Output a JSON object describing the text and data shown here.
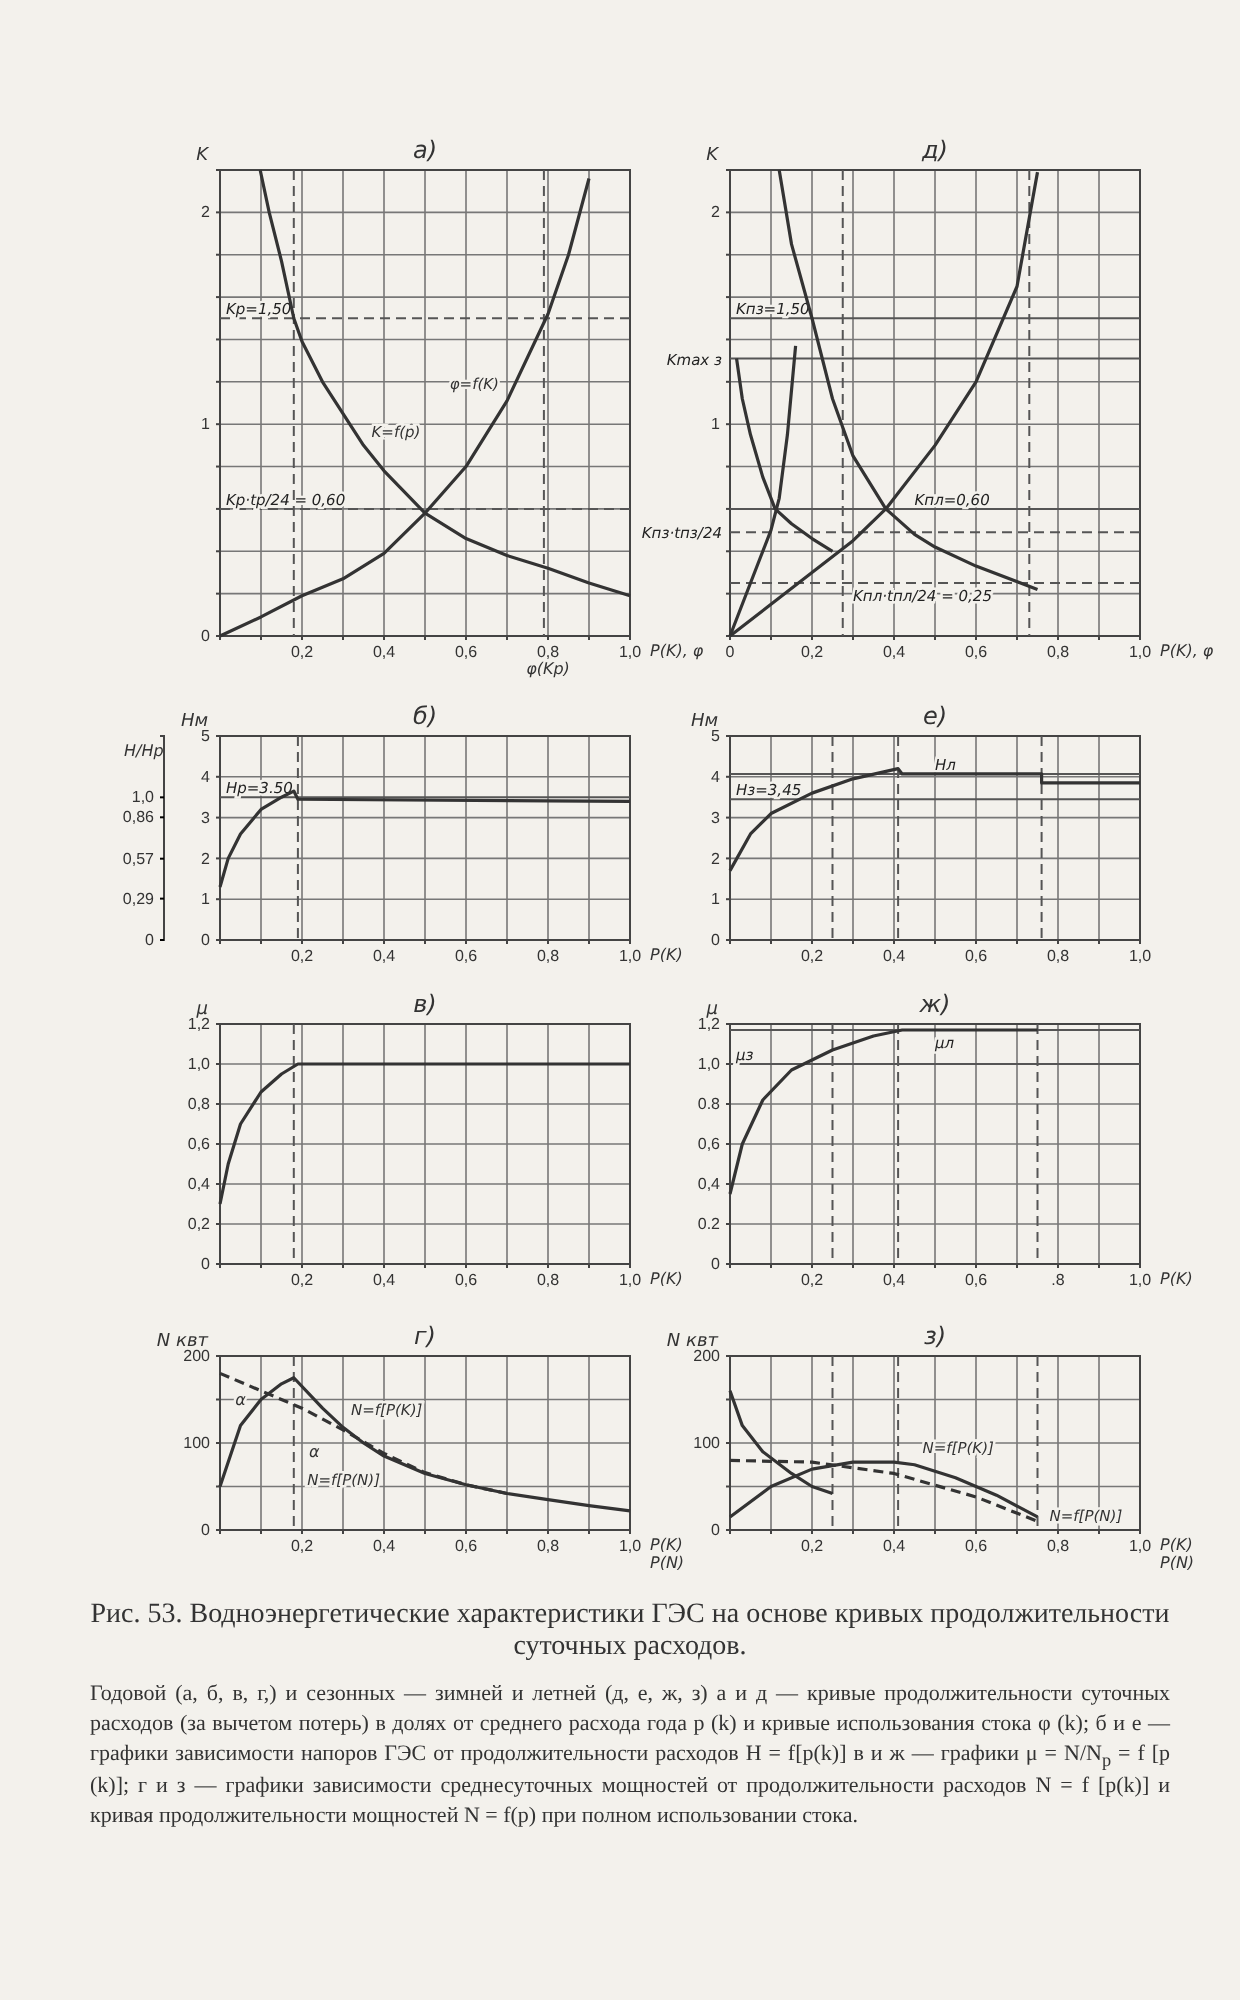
{
  "chart_data": [
    {
      "type": "line",
      "title": "а)",
      "ylabel": "K",
      "xlabel": "P(K), φ",
      "xlim": [
        0,
        1
      ],
      "ylim": [
        0,
        2.2
      ],
      "grid": true,
      "xticks": [
        {
          "value": 0,
          "label": null
        },
        {
          "value": 0.1,
          "label": null
        },
        {
          "value": 0.2,
          "label": "0,2"
        },
        {
          "value": 0.3,
          "label": null
        },
        {
          "value": 0.4,
          "label": "0,4"
        },
        {
          "value": 0.5,
          "label": null
        },
        {
          "value": 0.6,
          "label": "0,6"
        },
        {
          "value": 0.7,
          "label": null
        },
        {
          "value": 0.8,
          "label": "0,8"
        },
        {
          "value": 0.9,
          "label": null
        },
        {
          "value": 1,
          "label": "1,0"
        }
      ],
      "yticks": [
        0,
        {
          "value": 0.2,
          "label": null
        },
        {
          "value": 0.4,
          "label": null
        },
        {
          "value": 0.6,
          "label": null
        },
        {
          "value": 0.8,
          "label": null
        },
        1,
        {
          "value": 1.2,
          "label": null
        },
        {
          "value": 1.4,
          "label": null
        },
        {
          "value": 1.6,
          "label": null
        },
        {
          "value": 1.8,
          "label": null
        },
        2
      ],
      "series": [
        {
          "name": "K=f(p)",
          "color": "#333333",
          "x": [
            0.098,
            0.12,
            0.15,
            0.18,
            0.2,
            0.25,
            0.3,
            0.35,
            0.4,
            0.5,
            0.6,
            0.7,
            0.8,
            0.9,
            1.0
          ],
          "values": [
            2.2,
            2.0,
            1.77,
            1.5,
            1.39,
            1.2,
            1.05,
            0.9,
            0.78,
            0.58,
            0.46,
            0.38,
            0.32,
            0.25,
            0.19
          ]
        },
        {
          "name": "φ=f(K)",
          "color": "#333333",
          "x": [
            0,
            0.1,
            0.2,
            0.3,
            0.4,
            0.5,
            0.6,
            0.7,
            0.8,
            0.85,
            0.9
          ],
          "values": [
            0,
            0.09,
            0.19,
            0.27,
            0.39,
            0.58,
            0.8,
            1.11,
            1.52,
            1.8,
            2.16
          ]
        }
      ],
      "ref_lines": [
        {
          "axis": "y",
          "value": 1.5,
          "label": "Kр=1,50",
          "line_style": "dashed",
          "color": "#555555"
        },
        {
          "axis": "y",
          "value": 0.6,
          "label": "Kр·tр/24 = 0,60",
          "line_style": "dashed",
          "color": "#555555"
        },
        {
          "axis": "x",
          "value": 0.18,
          "line_style": "dashed",
          "color": "#555555"
        },
        {
          "axis": "x",
          "value": 0.79,
          "line_style": "dashed",
          "color": "#555555"
        }
      ],
      "annotations": [
        "φ(Kр)"
      ]
    },
    {
      "type": "line",
      "title": "д)",
      "ylabel": "K",
      "xlabel": "P(K), φ",
      "xlim": [
        0,
        1
      ],
      "ylim": [
        0,
        2.2
      ],
      "grid": true,
      "xticks": [
        {
          "value": 0,
          "label": "0"
        },
        {
          "value": 0.1,
          "label": null
        },
        {
          "value": 0.2,
          "label": "0,2"
        },
        {
          "value": 0.3,
          "label": null
        },
        {
          "value": 0.4,
          "label": "0,4"
        },
        {
          "value": 0.5,
          "label": null
        },
        {
          "value": 0.6,
          "label": "0,6"
        },
        {
          "value": 0.7,
          "label": null
        },
        {
          "value": 0.8,
          "label": "0,8"
        },
        {
          "value": 0.9,
          "label": null
        },
        {
          "value": 1,
          "label": "1,0"
        }
      ],
      "tick_labels": "xy",
      "yticks": [
        {
          "value": 0,
          "label": null
        },
        {
          "value": 0.2,
          "label": null
        },
        {
          "value": 0.4,
          "label": null
        },
        {
          "value": 0.6,
          "label": null
        },
        {
          "value": 0.8,
          "label": null
        },
        1,
        {
          "value": 1.2,
          "label": null
        },
        {
          "value": 1.4,
          "label": null
        },
        {
          "value": 1.6,
          "label": null
        },
        {
          "value": 1.8,
          "label": null
        },
        2
      ],
      "series": [
        {
          "color": "#333333",
          "x": [
            0.12,
            0.15,
            0.2,
            0.25,
            0.3,
            0.38,
            0.45,
            0.5,
            0.6,
            0.75
          ],
          "values": [
            2.2,
            1.85,
            1.5,
            1.12,
            0.85,
            0.6,
            0.48,
            0.42,
            0.33,
            0.22
          ]
        },
        {
          "color": "#333333",
          "x": [
            0.016,
            0.03,
            0.05,
            0.08,
            0.11,
            0.15,
            0.2,
            0.25
          ],
          "values": [
            1.31,
            1.12,
            0.95,
            0.75,
            0.6,
            0.53,
            0.46,
            0.4
          ]
        },
        {
          "color": "#333333",
          "x": [
            0,
            0.05,
            0.1,
            0.12,
            0.14,
            0.16
          ],
          "values": [
            0,
            0.25,
            0.5,
            0.65,
            0.95,
            1.37
          ]
        },
        {
          "color": "#333333",
          "x": [
            0,
            0.1,
            0.2,
            0.3,
            0.38,
            0.5,
            0.6,
            0.7,
            0.75
          ],
          "values": [
            0,
            0.15,
            0.3,
            0.45,
            0.6,
            0.9,
            1.2,
            1.65,
            2.19
          ]
        }
      ],
      "ref_lines": [
        {
          "axis": "y",
          "value": 1.5,
          "label": "Kпз=1,50",
          "line_style": "solid",
          "color": "#555555"
        },
        {
          "axis": "y",
          "value": 1.31,
          "label": "Kmax з",
          "line_style": "solid",
          "color": "#555555"
        },
        {
          "axis": "y",
          "value": 0.49,
          "label": "Kпз·tпз/24",
          "line_style": "dashed",
          "color": "#555555"
        },
        {
          "axis": "y",
          "value": 0.6,
          "label": "Kпл=0,60",
          "line_style": "solid",
          "color": "#555555"
        },
        {
          "axis": "y",
          "value": 0.25,
          "label": "Kпл·tпл/24 = 0,25",
          "line_style": "dashed",
          "color": "#555555"
        },
        {
          "axis": "x",
          "value": 0.275,
          "line_style": "dashed",
          "color": "#555555"
        },
        {
          "axis": "x",
          "value": 0.73,
          "line_style": "dashed",
          "color": "#555555"
        }
      ]
    },
    {
      "type": "line",
      "title": "б)",
      "ylabel": "Hм",
      "y2label": "H/Hр",
      "xlabel": "P(K)",
      "xlim": [
        0,
        1
      ],
      "ylim": [
        0,
        5
      ],
      "y2lim": [
        0,
        1.43
      ],
      "grid": true,
      "xticks": [
        {
          "value": 0,
          "label": null
        },
        {
          "value": 0.1,
          "label": null
        },
        {
          "value": 0.2,
          "label": "0,2"
        },
        {
          "value": 0.3,
          "label": null
        },
        {
          "value": 0.4,
          "label": "0,4"
        },
        {
          "value": 0.5,
          "label": null
        },
        {
          "value": 0.6,
          "label": "0,6"
        },
        {
          "value": 0.7,
          "label": null
        },
        {
          "value": 0.8,
          "label": "0,8"
        },
        {
          "value": 0.9,
          "label": null
        },
        {
          "value": 1,
          "label": "1,0"
        }
      ],
      "yticks": [
        0,
        1,
        2,
        3,
        4,
        5
      ],
      "y2ticks": [
        0,
        {
          "value": 0.29,
          "label": "0,29"
        },
        {
          "value": 0.57,
          "label": "0,57"
        },
        {
          "value": 0.86,
          "label": "0,86"
        },
        {
          "value": 1,
          "label": "1,0"
        }
      ],
      "series": [
        {
          "color": "#333333",
          "x": [
            0,
            0.02,
            0.05,
            0.1,
            0.15,
            0.18,
            0.19,
            1.0
          ],
          "values": [
            1.3,
            2.0,
            2.6,
            3.2,
            3.5,
            3.65,
            3.45,
            3.4
          ]
        }
      ],
      "ref_lines": [
        {
          "axis": "y",
          "value": 3.5,
          "label": "Hр=3.50",
          "line_style": "solid",
          "color": "#555555"
        },
        {
          "axis": "x",
          "value": 0.19,
          "line_style": "dashed",
          "color": "#555555"
        }
      ]
    },
    {
      "type": "line",
      "title": "е)",
      "ylabel": "Hм",
      "xlim": [
        0,
        1
      ],
      "ylim": [
        0,
        5
      ],
      "grid": true,
      "xticks": [
        {
          "value": 0,
          "label": null
        },
        {
          "value": 0.1,
          "label": null
        },
        {
          "value": 0.2,
          "label": "0,2"
        },
        {
          "value": 0.3,
          "label": null
        },
        {
          "value": 0.4,
          "label": "0,4"
        },
        {
          "value": 0.5,
          "label": null
        },
        {
          "value": 0.6,
          "label": "0,6"
        },
        {
          "value": 0.7,
          "label": null
        },
        {
          "value": 0.8,
          "label": "0,8"
        },
        {
          "value": 0.9,
          "label": null
        },
        {
          "value": 1,
          "label": "1,0"
        }
      ],
      "yticks": [
        0,
        1,
        2,
        3,
        4,
        5
      ],
      "series": [
        {
          "color": "#333333",
          "x": [
            0,
            0.05,
            0.1,
            0.2,
            0.3,
            0.41,
            0.42,
            0.76,
            0.76,
            1.0
          ],
          "values": [
            1.7,
            2.6,
            3.1,
            3.6,
            3.95,
            4.2,
            4.07,
            4.07,
            3.85,
            3.85
          ]
        }
      ],
      "ref_lines": [
        {
          "axis": "y",
          "value": 3.45,
          "label": "Hз=3,45",
          "line_style": "solid",
          "color": "#555555"
        },
        {
          "axis": "y",
          "value": 4.07,
          "label": "Hл",
          "line_style": "solid",
          "color": "#555555"
        },
        {
          "axis": "x",
          "value": 0.25,
          "line_style": "dashed",
          "color": "#555555"
        },
        {
          "axis": "x",
          "value": 0.41,
          "line_style": "dashed",
          "color": "#555555"
        },
        {
          "axis": "x",
          "value": 0.76,
          "line_style": "dashed",
          "color": "#555555"
        }
      ]
    },
    {
      "type": "line",
      "title": "в)",
      "ylabel": "μ",
      "xlabel": "P(K)",
      "xlim": [
        0,
        1
      ],
      "ylim": [
        0,
        1.2
      ],
      "grid": true,
      "xticks": [
        {
          "value": 0,
          "label": null
        },
        {
          "value": 0.1,
          "label": null
        },
        {
          "value": 0.2,
          "label": "0,2"
        },
        {
          "value": 0.3,
          "label": null
        },
        {
          "value": 0.4,
          "label": "0,4"
        },
        {
          "value": 0.5,
          "label": null
        },
        {
          "value": 0.6,
          "label": "0,6"
        },
        {
          "value": 0.7,
          "label": null
        },
        {
          "value": 0.8,
          "label": "0,8"
        },
        {
          "value": 0.9,
          "label": null
        },
        {
          "value": 1,
          "label": "1,0"
        }
      ],
      "yticks": [
        0,
        {
          "value": 0.2,
          "label": "0,2"
        },
        {
          "value": 0.4,
          "label": "0,4"
        },
        {
          "value": 0.6,
          "label": "0,6"
        },
        {
          "value": 0.8,
          "label": "0,8"
        },
        {
          "value": 1,
          "label": "1,0"
        },
        {
          "value": 1.2,
          "label": "1,2"
        }
      ],
      "series": [
        {
          "color": "#333333",
          "x": [
            0,
            0.02,
            0.05,
            0.1,
            0.15,
            0.19,
            1.0
          ],
          "values": [
            0.3,
            0.5,
            0.7,
            0.86,
            0.95,
            1.0,
            1.0
          ]
        }
      ],
      "ref_lines": [
        {
          "axis": "x",
          "value": 0.18,
          "line_style": "dashed",
          "color": "#555555"
        }
      ]
    },
    {
      "type": "line",
      "title": "ж)",
      "ylabel": "μ",
      "xlabel": "P(K)",
      "xlim": [
        0,
        1
      ],
      "ylim": [
        0,
        1.2
      ],
      "grid": true,
      "xticks": [
        {
          "value": 0,
          "label": null
        },
        {
          "value": 0.1,
          "label": null
        },
        {
          "value": 0.2,
          "label": "0,2"
        },
        {
          "value": 0.3,
          "label": null
        },
        {
          "value": 0.4,
          "label": "0,4"
        },
        {
          "value": 0.5,
          "label": null
        },
        {
          "value": 0.6,
          "label": "0,6"
        },
        {
          "value": 0.7,
          "label": null
        },
        {
          "value": 0.8,
          "label": ".8"
        },
        {
          "value": 0.9,
          "label": null
        },
        {
          "value": 1,
          "label": "1,0"
        }
      ],
      "yticks": [
        0,
        {
          "value": 0.2,
          "label": "0.2"
        },
        {
          "value": 0.4,
          "label": "0,4"
        },
        {
          "value": 0.6,
          "label": "0,6"
        },
        {
          "value": 0.8,
          "label": "0.8"
        },
        {
          "value": 1,
          "label": "1,0"
        },
        {
          "value": 1.2,
          "label": "1,2"
        }
      ],
      "series": [
        {
          "color": "#333333",
          "x": [
            0,
            0.03,
            0.08,
            0.15,
            0.25,
            0.35,
            0.42,
            0.75
          ],
          "values": [
            0.35,
            0.6,
            0.82,
            0.97,
            1.07,
            1.14,
            1.17,
            1.17
          ]
        }
      ],
      "ref_lines": [
        {
          "axis": "y",
          "value": 1.0,
          "label": "μз",
          "line_style": "solid",
          "color": "#555555"
        },
        {
          "axis": "y",
          "value": 1.17,
          "label": "μл",
          "line_style": "solid",
          "color": "#555555"
        },
        {
          "axis": "x",
          "value": 0.25,
          "line_style": "dashed",
          "color": "#555555"
        },
        {
          "axis": "x",
          "value": 0.41,
          "line_style": "dashed",
          "color": "#555555"
        },
        {
          "axis": "x",
          "value": 0.75,
          "line_style": "dashed",
          "color": "#555555"
        }
      ]
    },
    {
      "type": "line",
      "title": "г)",
      "ylabel": "N квт",
      "xlabel": "P(K)\nP(N)",
      "xlim": [
        0,
        1
      ],
      "ylim": [
        0,
        200
      ],
      "grid": true,
      "xticks": [
        {
          "value": 0,
          "label": null
        },
        {
          "value": 0.1,
          "label": null
        },
        {
          "value": 0.2,
          "label": "0,2"
        },
        {
          "value": 0.3,
          "label": null
        },
        {
          "value": 0.4,
          "label": "0,4"
        },
        {
          "value": 0.5,
          "label": null
        },
        {
          "value": 0.6,
          "label": "0,6"
        },
        {
          "value": 0.7,
          "label": null
        },
        {
          "value": 0.8,
          "label": "0,8"
        },
        {
          "value": 0.9,
          "label": null
        },
        {
          "value": 1,
          "label": "1,0"
        }
      ],
      "yticks": [
        0,
        {
          "value": 50,
          "label": null
        },
        100,
        {
          "value": 150,
          "label": null
        },
        200
      ],
      "series": [
        {
          "name": "N=f[P(K)]",
          "color": "#333333",
          "line_style": "solid",
          "x": [
            0,
            0.05,
            0.1,
            0.15,
            0.18,
            0.25,
            0.3,
            0.35,
            0.4,
            0.5,
            0.6,
            0.7,
            0.8,
            0.9,
            1.0
          ],
          "values": [
            50,
            120,
            150,
            168,
            175,
            140,
            118,
            100,
            85,
            65,
            52,
            42,
            35,
            28,
            22
          ]
        },
        {
          "name": "N=f[P(N)]",
          "color": "#333333",
          "line_style": "dashed",
          "x": [
            0,
            0.1,
            0.2,
            0.3,
            0.4,
            0.5,
            0.6,
            0.7
          ],
          "values": [
            180,
            160,
            140,
            115,
            88,
            66,
            52,
            42
          ]
        }
      ],
      "ref_lines": [
        {
          "axis": "x",
          "value": 0.18,
          "line_style": "dashed",
          "color": "#555555"
        }
      ],
      "annotations": [
        "α",
        "α"
      ]
    },
    {
      "type": "line",
      "title": "з)",
      "ylabel": "N квт",
      "xlabel": "P(K)\nP(N)",
      "xlim": [
        0,
        1
      ],
      "ylim": [
        0,
        200
      ],
      "grid": true,
      "xticks": [
        {
          "value": 0,
          "label": null
        },
        {
          "value": 0.1,
          "label": null
        },
        {
          "value": 0.2,
          "label": "0,2"
        },
        {
          "value": 0.3,
          "label": null
        },
        {
          "value": 0.4,
          "label": "0,4"
        },
        {
          "value": 0.5,
          "label": null
        },
        {
          "value": 0.6,
          "label": "0,6"
        },
        {
          "value": 0.7,
          "label": null
        },
        {
          "value": 0.8,
          "label": "0,8"
        },
        {
          "value": 0.9,
          "label": null
        },
        {
          "value": 1,
          "label": "1,0"
        }
      ],
      "yticks": [
        0,
        {
          "value": 50,
          "label": null
        },
        100,
        {
          "value": 150,
          "label": null
        },
        200
      ],
      "series": [
        {
          "color": "#333333",
          "line_style": "solid",
          "x": [
            0,
            0.03,
            0.08,
            0.15,
            0.2,
            0.25
          ],
          "values": [
            160,
            120,
            90,
            65,
            50,
            42
          ]
        },
        {
          "name": "N=f[P(K)]",
          "color": "#333333",
          "line_style": "solid",
          "x": [
            0,
            0.1,
            0.2,
            0.3,
            0.4,
            0.45,
            0.55,
            0.65,
            0.75
          ],
          "values": [
            15,
            50,
            70,
            78,
            78,
            75,
            60,
            40,
            15
          ]
        },
        {
          "name": "N=f[P(N)]",
          "color": "#333333",
          "line_style": "dashed",
          "x": [
            0,
            0.2,
            0.4,
            0.6,
            0.75
          ],
          "values": [
            80,
            78,
            65,
            38,
            10
          ]
        }
      ],
      "ref_lines": [
        {
          "axis": "x",
          "value": 0.25,
          "line_style": "dashed",
          "color": "#555555"
        },
        {
          "axis": "x",
          "value": 0.41,
          "line_style": "dashed",
          "color": "#555555"
        },
        {
          "axis": "x",
          "value": 0.75,
          "line_style": "dashed",
          "color": "#555555"
        }
      ]
    },
    {
      "type": "other",
      "title": "Рис. 53. Водноэнергетические характеристики ГЭС на основе кривых продолжительности суточных расходов.",
      "annotations": [
        "Годовой (а, б, в, г,) и сезонных — зимней и летней (д, е, ж, з) а и д — кривые продолжительности суточных расходов (за вычетом потерь) в долях от среднего расхода года p (k) и кривые использования стока φ (k); б и е — графики зависимости напоров ГЭС от продолжительности расходов H = f[p(k)] в и ж — графики μ = N/N$_{p}$ = f [p (k)]; г и з — графики зависимости среднесуточных мощностей от продолжительности расходов N = f [p(k)] и кривая продолжительности мощностей N = f(p) при полном использовании стока."
      ]
    }
  ]
}
